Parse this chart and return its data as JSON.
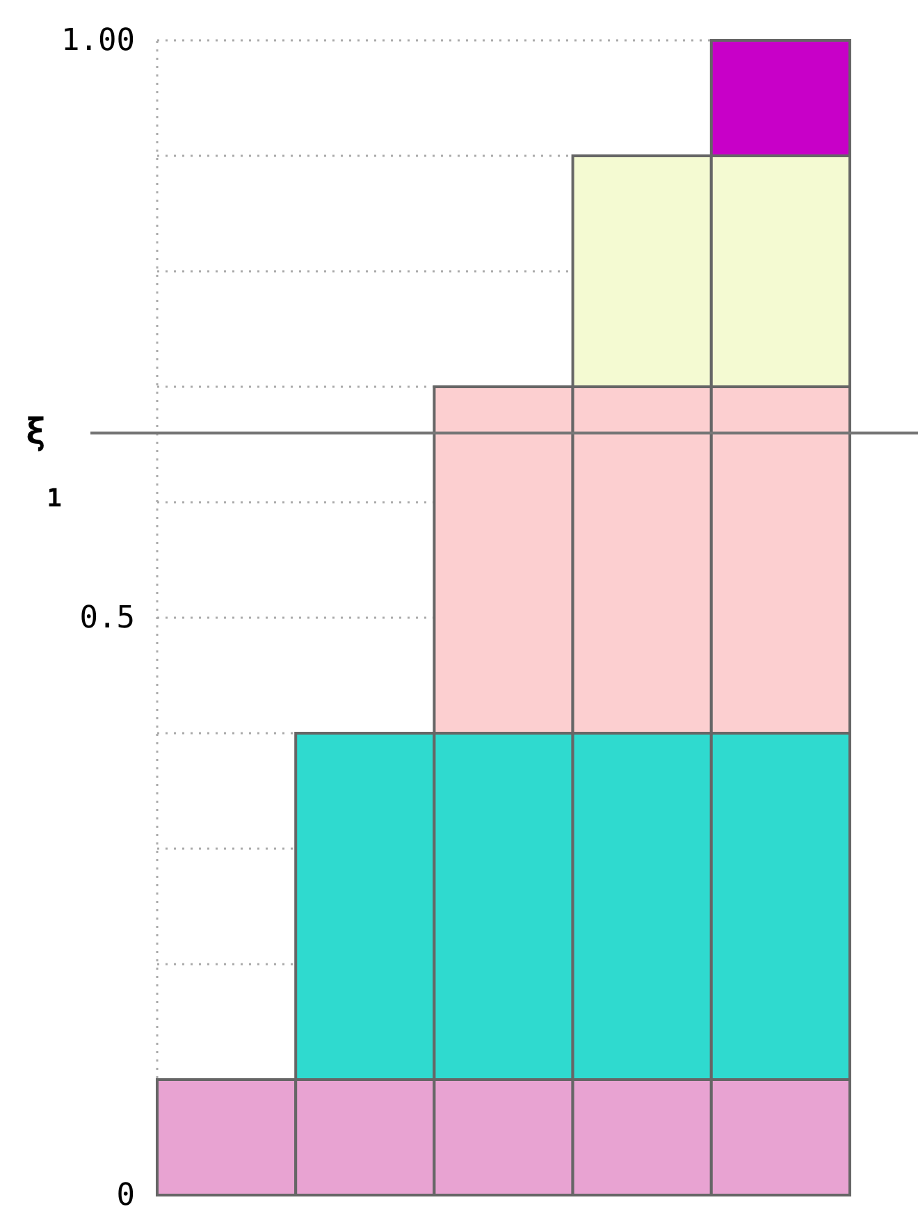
{
  "chart_data": {
    "type": "bar",
    "stacked": true,
    "categories": [
      null,
      null,
      null,
      null,
      null
    ],
    "series": [
      {
        "color": "#e8a3d2",
        "values": [
          0.1,
          0.1,
          0.1,
          0.1,
          0.1
        ]
      },
      {
        "color": "#2fdacf",
        "values": [
          null,
          0.3,
          0.3,
          0.3,
          0.3
        ]
      },
      {
        "color": "#fccfd0",
        "values": [
          null,
          null,
          0.3,
          0.3,
          0.3
        ]
      },
      {
        "color": "#f4fad2",
        "values": [
          null,
          null,
          null,
          0.2,
          0.2
        ]
      },
      {
        "color": "#c800c8",
        "values": [
          null,
          null,
          null,
          null,
          0.1
        ]
      }
    ],
    "ylim": [
      0,
      1
    ],
    "yticks": [
      {
        "value": 0,
        "label": "0"
      },
      {
        "value": 0.2,
        "label": null
      },
      {
        "value": 0.3,
        "label": null
      },
      {
        "value": 0.4,
        "label": null
      },
      {
        "value": 0.5,
        "label": "0.5"
      },
      {
        "value": 0.6,
        "label": null
      },
      {
        "value": 0.7,
        "label": null
      },
      {
        "value": 0.8,
        "label": null
      },
      {
        "value": 0.9,
        "label": null
      },
      {
        "value": 1,
        "label": "1.00"
      }
    ],
    "grid": "y",
    "tick_labels": "y",
    "ref_lines": [
      {
        "axis": "y",
        "value": 0.66,
        "label": "ξ$_{1}$",
        "color": "#777777"
      }
    ]
  }
}
